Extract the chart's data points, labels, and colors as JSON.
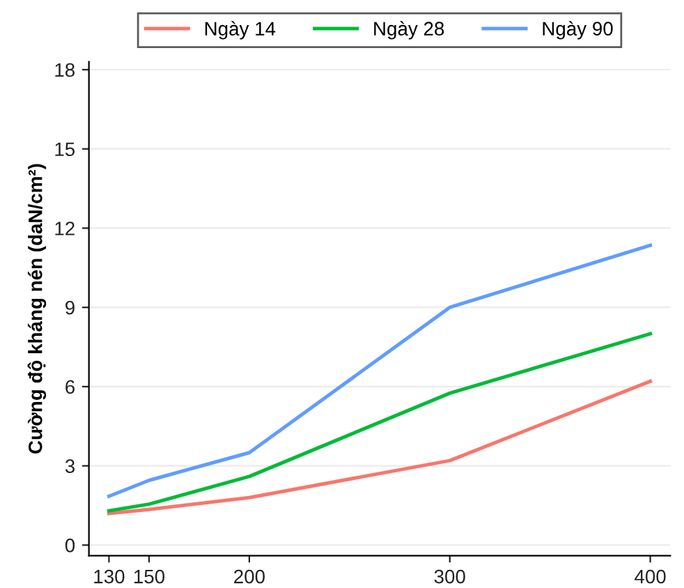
{
  "chart_data": {
    "type": "line",
    "ylabel": "Cường độ kháng nén (daN/cm²)",
    "x": [
      130,
      150,
      200,
      300,
      400
    ],
    "series": [
      {
        "name": "Ngày 14",
        "color": "#f8766d",
        "values": [
          1.2,
          1.35,
          1.8,
          3.2,
          6.2
        ]
      },
      {
        "name": "Ngày 28",
        "color": "#00ba38",
        "values": [
          1.3,
          1.55,
          2.6,
          5.75,
          8.0
        ]
      },
      {
        "name": "Ngày 90",
        "color": "#619cff",
        "values": [
          1.85,
          2.45,
          3.5,
          9.0,
          11.35
        ]
      }
    ],
    "xlim": [
      120,
      410
    ],
    "ylim": [
      -0.4,
      18.3
    ],
    "xticks": [
      130,
      150,
      200,
      300,
      400
    ],
    "yticks": [
      0,
      3,
      6,
      9,
      12,
      15,
      18
    ],
    "grid": "y",
    "legend": "top",
    "marker": "none",
    "line_style": "solid"
  }
}
